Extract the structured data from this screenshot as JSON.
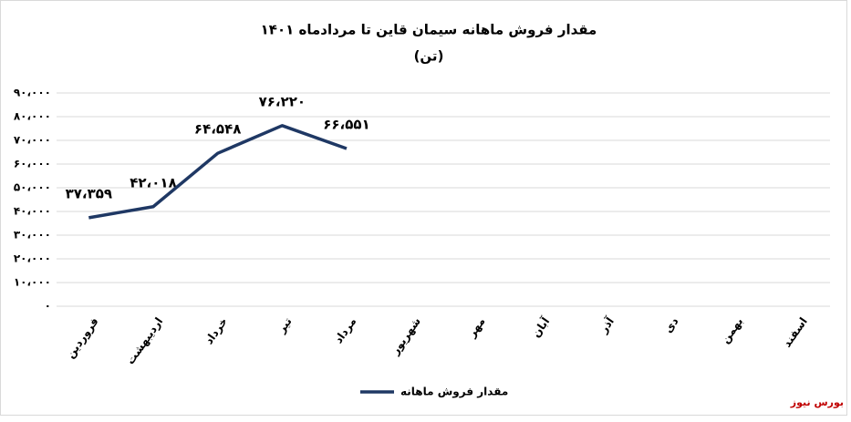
{
  "chart_data": {
    "type": "line",
    "title": "مقدار فروش ماهانه سیمان قاین تا مردادماه ۱۴۰۱",
    "subtitle": "(تن)",
    "categories": [
      "فروردین",
      "اردیبهشت",
      "خرداد",
      "تیر",
      "مرداد",
      "شهریور",
      "مهر",
      "آبان",
      "آذر",
      "دی",
      "بهمن",
      "اسفند"
    ],
    "series": [
      {
        "name": "مقدار فروش ماهانه",
        "color": "#1f3864",
        "values": [
          37359,
          42018,
          64548,
          76220,
          66551,
          null,
          null,
          null,
          null,
          null,
          null,
          null
        ],
        "value_labels": [
          "۳۷،۳۵۹",
          "۴۲،۰۱۸",
          "۶۴،۵۴۸",
          "۷۶،۲۲۰",
          "۶۶،۵۵۱",
          null,
          null,
          null,
          null,
          null,
          null,
          null
        ]
      }
    ],
    "ylim": [
      0,
      90000
    ],
    "yticks": [
      {
        "value": 0,
        "label": "۰"
      },
      {
        "value": 10000,
        "label": "۱۰،۰۰۰"
      },
      {
        "value": 20000,
        "label": "۲۰،۰۰۰"
      },
      {
        "value": 30000,
        "label": "۳۰،۰۰۰"
      },
      {
        "value": 40000,
        "label": "۴۰،۰۰۰"
      },
      {
        "value": 50000,
        "label": "۵۰،۰۰۰"
      },
      {
        "value": 60000,
        "label": "۶۰،۰۰۰"
      },
      {
        "value": 70000,
        "label": "۷۰،۰۰۰"
      },
      {
        "value": 80000,
        "label": "۸۰،۰۰۰"
      },
      {
        "value": 90000,
        "label": "۹۰،۰۰۰"
      }
    ],
    "grid": true,
    "legend": "bottom",
    "source": "بورس نیوز"
  }
}
